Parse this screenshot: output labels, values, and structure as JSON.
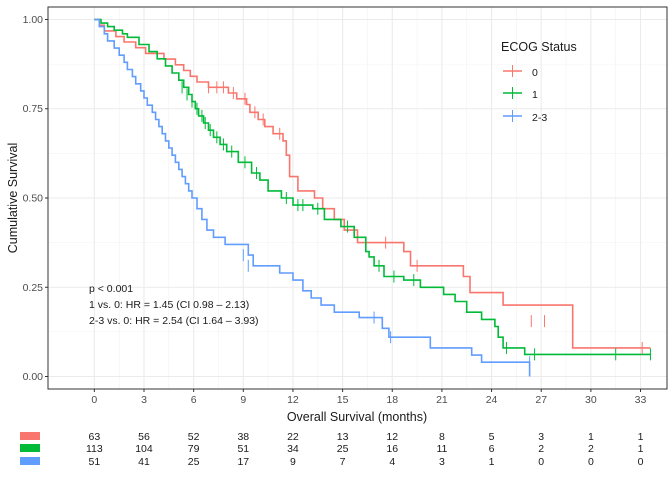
{
  "chart_data": {
    "type": "line",
    "step": true,
    "xlabel": "Overall Survival (months)",
    "ylabel": "Cumulative Survival",
    "xlim": [
      -2.8,
      34.6
    ],
    "ylim": [
      -0.035,
      1.035
    ],
    "x_ticks": [
      0,
      3,
      6,
      9,
      12,
      15,
      18,
      21,
      24,
      27,
      30,
      33
    ],
    "y_ticks": [
      0,
      0.25,
      0.5,
      0.75,
      1
    ],
    "y_tick_labels": [
      "0.00",
      "0.25",
      "0.50",
      "0.75",
      "1.00"
    ],
    "grid": true,
    "legend": {
      "title": "ECOG Status",
      "position": "top-right"
    },
    "annotations": [
      "p < 0.001",
      "1 vs. 0: HR = 1.45 (CI 0.98 – 2.13)",
      "2-3 vs. 0: HR = 2.54 (CI 1.64 – 3.93)"
    ],
    "series": [
      {
        "name": "0",
        "color": "#F8766D",
        "steps": [
          [
            0,
            1.0
          ],
          [
            0.3,
            0.984
          ],
          [
            0.6,
            0.968
          ],
          [
            1.3,
            0.952
          ],
          [
            1.8,
            0.937
          ],
          [
            2.5,
            0.921
          ],
          [
            3.1,
            0.905
          ],
          [
            4.2,
            0.889
          ],
          [
            4.9,
            0.873
          ],
          [
            5.4,
            0.857
          ],
          [
            5.8,
            0.841
          ],
          [
            6.2,
            0.825
          ],
          [
            6.9,
            0.81
          ],
          [
            8.1,
            0.794
          ],
          [
            8.6,
            0.778
          ],
          [
            9.2,
            0.762
          ],
          [
            9.4,
            0.74
          ],
          [
            9.9,
            0.72
          ],
          [
            10.3,
            0.7
          ],
          [
            10.8,
            0.68
          ],
          [
            11.4,
            0.66
          ],
          [
            11.6,
            0.62
          ],
          [
            11.8,
            0.56
          ],
          [
            12.3,
            0.52
          ],
          [
            13.3,
            0.5
          ],
          [
            13.8,
            0.47
          ],
          [
            14.5,
            0.44
          ],
          [
            15.1,
            0.41
          ],
          [
            15.9,
            0.375
          ],
          [
            18.7,
            0.35
          ],
          [
            19.1,
            0.31
          ],
          [
            22.3,
            0.28
          ],
          [
            22.7,
            0.235
          ],
          [
            24.7,
            0.2
          ],
          [
            28.9,
            0.08
          ],
          [
            33.6,
            0.08
          ]
        ],
        "censor": [
          [
            6.9,
            0.81
          ],
          [
            7.4,
            0.81
          ],
          [
            7.8,
            0.81
          ],
          [
            8.4,
            0.794
          ],
          [
            9.1,
            0.778
          ],
          [
            9.7,
            0.74
          ],
          [
            10.2,
            0.72
          ],
          [
            11.2,
            0.68
          ],
          [
            17.6,
            0.375
          ],
          [
            19.5,
            0.31
          ],
          [
            26.4,
            0.155
          ],
          [
            27.2,
            0.155
          ],
          [
            33.1,
            0.08
          ]
        ]
      },
      {
        "name": "1",
        "color": "#00BA38",
        "steps": [
          [
            0,
            1.0
          ],
          [
            0.4,
            0.99
          ],
          [
            0.8,
            0.98
          ],
          [
            1.2,
            0.97
          ],
          [
            1.7,
            0.96
          ],
          [
            2.0,
            0.95
          ],
          [
            2.7,
            0.93
          ],
          [
            3.3,
            0.91
          ],
          [
            3.8,
            0.89
          ],
          [
            4.3,
            0.87
          ],
          [
            4.7,
            0.85
          ],
          [
            5.1,
            0.83
          ],
          [
            5.4,
            0.81
          ],
          [
            5.7,
            0.79
          ],
          [
            5.9,
            0.77
          ],
          [
            6.1,
            0.75
          ],
          [
            6.3,
            0.73
          ],
          [
            6.6,
            0.71
          ],
          [
            6.9,
            0.69
          ],
          [
            7.2,
            0.67
          ],
          [
            7.6,
            0.65
          ],
          [
            8.0,
            0.63
          ],
          [
            8.7,
            0.6
          ],
          [
            9.5,
            0.57
          ],
          [
            10.0,
            0.55
          ],
          [
            10.5,
            0.52
          ],
          [
            11.3,
            0.5
          ],
          [
            12.0,
            0.48
          ],
          [
            13.2,
            0.47
          ],
          [
            13.9,
            0.44
          ],
          [
            14.9,
            0.42
          ],
          [
            15.7,
            0.39
          ],
          [
            16.4,
            0.35
          ],
          [
            16.6,
            0.335
          ],
          [
            16.9,
            0.31
          ],
          [
            17.5,
            0.28
          ],
          [
            18.7,
            0.27
          ],
          [
            19.7,
            0.25
          ],
          [
            21.1,
            0.23
          ],
          [
            21.8,
            0.21
          ],
          [
            22.5,
            0.18
          ],
          [
            23.4,
            0.16
          ],
          [
            24.2,
            0.14
          ],
          [
            24.4,
            0.11
          ],
          [
            24.7,
            0.08
          ],
          [
            26.0,
            0.062
          ],
          [
            33.6,
            0.062
          ]
        ],
        "censor": [
          [
            5.3,
            0.81
          ],
          [
            5.6,
            0.79
          ],
          [
            5.9,
            0.77
          ],
          [
            6.2,
            0.75
          ],
          [
            6.5,
            0.73
          ],
          [
            6.7,
            0.71
          ],
          [
            7.0,
            0.69
          ],
          [
            7.4,
            0.67
          ],
          [
            7.8,
            0.65
          ],
          [
            8.3,
            0.63
          ],
          [
            9.1,
            0.6
          ],
          [
            9.8,
            0.57
          ],
          [
            11.6,
            0.5
          ],
          [
            12.3,
            0.48
          ],
          [
            12.6,
            0.48
          ],
          [
            13.5,
            0.47
          ],
          [
            15.3,
            0.42
          ],
          [
            17.2,
            0.31
          ],
          [
            18.1,
            0.28
          ],
          [
            19.3,
            0.27
          ],
          [
            24.9,
            0.08
          ],
          [
            26.6,
            0.062
          ],
          [
            31.5,
            0.062
          ],
          [
            33.6,
            0.062
          ]
        ]
      },
      {
        "name": "2-3",
        "color": "#619CFF",
        "steps": [
          [
            0,
            1.0
          ],
          [
            0.3,
            0.98
          ],
          [
            0.6,
            0.96
          ],
          [
            0.8,
            0.94
          ],
          [
            1.2,
            0.92
          ],
          [
            1.5,
            0.9
          ],
          [
            1.8,
            0.88
          ],
          [
            2.0,
            0.86
          ],
          [
            2.3,
            0.84
          ],
          [
            2.5,
            0.82
          ],
          [
            2.8,
            0.8
          ],
          [
            3.0,
            0.78
          ],
          [
            3.2,
            0.76
          ],
          [
            3.5,
            0.74
          ],
          [
            3.7,
            0.72
          ],
          [
            3.9,
            0.7
          ],
          [
            4.1,
            0.68
          ],
          [
            4.3,
            0.66
          ],
          [
            4.5,
            0.64
          ],
          [
            4.7,
            0.62
          ],
          [
            4.9,
            0.6
          ],
          [
            5.1,
            0.58
          ],
          [
            5.3,
            0.56
          ],
          [
            5.5,
            0.54
          ],
          [
            5.7,
            0.52
          ],
          [
            5.9,
            0.5
          ],
          [
            6.2,
            0.47
          ],
          [
            6.5,
            0.44
          ],
          [
            6.8,
            0.41
          ],
          [
            7.2,
            0.39
          ],
          [
            7.9,
            0.37
          ],
          [
            9.3,
            0.34
          ],
          [
            9.6,
            0.31
          ],
          [
            11.2,
            0.29
          ],
          [
            12.0,
            0.27
          ],
          [
            12.6,
            0.24
          ],
          [
            13.1,
            0.22
          ],
          [
            13.7,
            0.2
          ],
          [
            14.5,
            0.18
          ],
          [
            16.0,
            0.165
          ],
          [
            17.4,
            0.135
          ],
          [
            17.8,
            0.11
          ],
          [
            20.3,
            0.08
          ],
          [
            22.8,
            0.06
          ],
          [
            23.4,
            0.04
          ],
          [
            26.3,
            0.0
          ]
        ],
        "censor": [
          [
            9.0,
            0.34
          ],
          [
            9.3,
            0.31
          ],
          [
            16.9,
            0.165
          ],
          [
            17.9,
            0.11
          ],
          [
            26.3,
            0.04
          ]
        ]
      }
    ],
    "risk_table": {
      "times": [
        0,
        3,
        6,
        9,
        12,
        15,
        18,
        21,
        24,
        27,
        30,
        33
      ],
      "rows": [
        {
          "name": "0",
          "color": "#F8766D",
          "values": [
            63,
            56,
            52,
            38,
            22,
            13,
            12,
            8,
            5,
            3,
            1,
            1
          ]
        },
        {
          "name": "1",
          "color": "#00BA38",
          "values": [
            113,
            104,
            79,
            51,
            34,
            25,
            16,
            11,
            6,
            2,
            2,
            1
          ]
        },
        {
          "name": "2-3",
          "color": "#619CFF",
          "values": [
            51,
            41,
            25,
            17,
            9,
            7,
            4,
            3,
            1,
            0,
            0,
            0
          ]
        }
      ]
    }
  }
}
